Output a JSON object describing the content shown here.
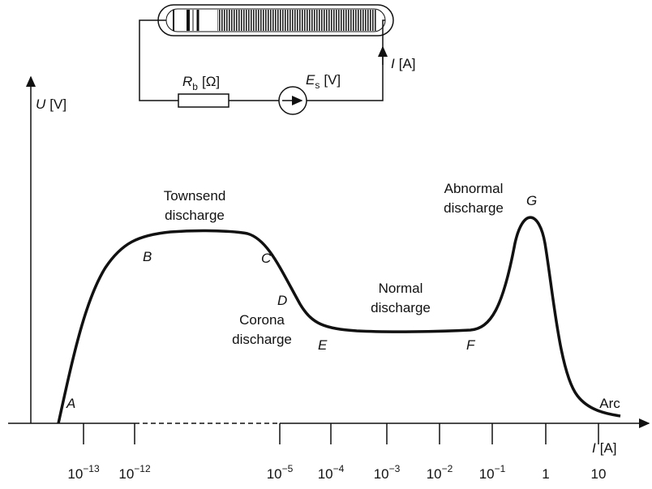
{
  "circuit": {
    "resistor": {
      "symbol": "R",
      "subscript": "b",
      "unit": "[Ω]"
    },
    "source": {
      "symbol": "E",
      "subscript": "s",
      "unit": "[V]"
    },
    "current": {
      "symbol": "I",
      "unit": "[A]"
    }
  },
  "axes": {
    "y": {
      "symbol": "U",
      "unit": "[V]"
    },
    "x": {
      "symbol": "I",
      "unit": "[A]"
    }
  },
  "x_ticks": [
    {
      "base": "10",
      "exponent": "−13"
    },
    {
      "base": "10",
      "exponent": "−12"
    },
    {
      "base": "10",
      "exponent": "−5"
    },
    {
      "base": "10",
      "exponent": "−4"
    },
    {
      "base": "10",
      "exponent": "−3"
    },
    {
      "base": "10",
      "exponent": "−2"
    },
    {
      "base": "10",
      "exponent": "−1"
    },
    {
      "base": "1"
    },
    {
      "base": "10"
    }
  ],
  "points": [
    "A",
    "B",
    "C",
    "D",
    "E",
    "F",
    "G"
  ],
  "regions": [
    [
      "Townsend",
      "discharge"
    ],
    [
      "Corona",
      "discharge"
    ],
    [
      "Normal",
      "discharge"
    ],
    [
      "Abnormal",
      "discharge"
    ],
    [
      "Arc"
    ]
  ]
}
